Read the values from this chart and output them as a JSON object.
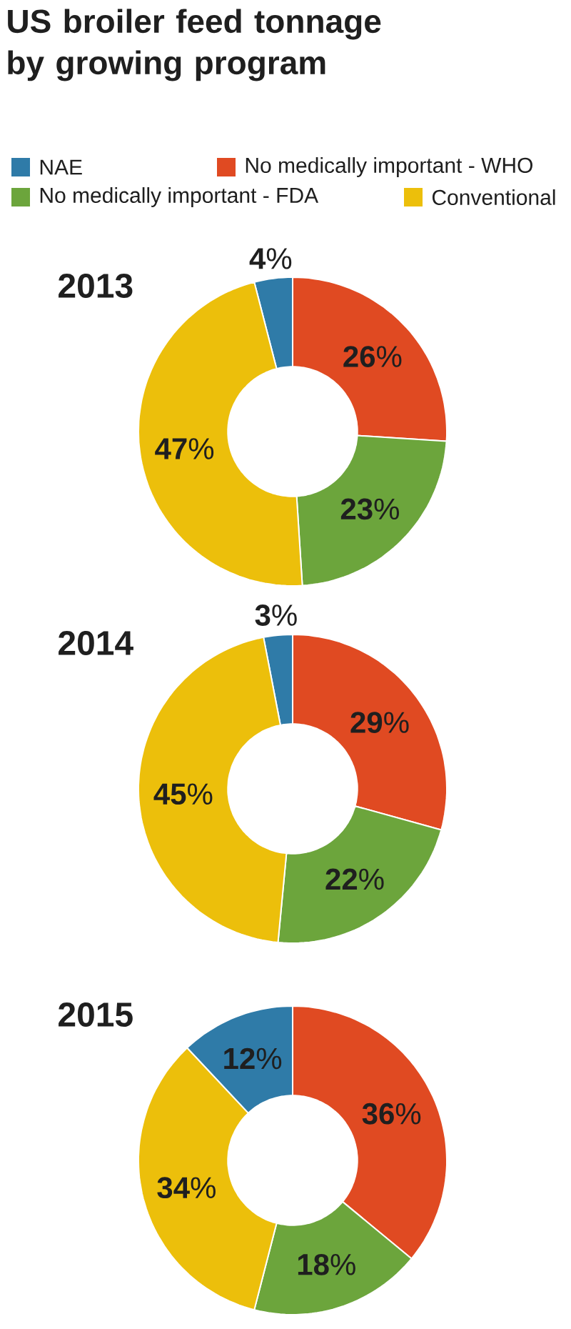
{
  "chart_data": [
    {
      "type": "other",
      "title": "US broiler feed tonnage by growing program"
    },
    {
      "type": "donut",
      "title": "2013",
      "categories": [
        "NAE",
        "No medically important - WHO",
        "No medically important - FDA",
        "Conventional"
      ],
      "values": [
        4,
        26,
        23,
        47
      ],
      "colors": [
        "#2f7ba8",
        "#e04a22",
        "#6ca53c",
        "#ecbf0b"
      ],
      "value_labels": [
        "**4**%",
        "**26**%",
        "**23**%",
        "**47**%"
      ],
      "legend": "top"
    },
    {
      "type": "donut",
      "title": "2014",
      "categories": [
        null,
        null,
        null,
        null
      ],
      "values": [
        3,
        29,
        22,
        45
      ],
      "colors": [
        "#2f7ba8",
        "#e04a22",
        "#6ca53c",
        "#ecbf0b"
      ],
      "value_labels": [
        "**3**%",
        "**29**%",
        "**22**%",
        "**45**%"
      ]
    },
    {
      "type": "donut",
      "title": "2015",
      "categories": [
        null,
        null,
        null,
        null
      ],
      "values": [
        12,
        36,
        18,
        34
      ],
      "colors": [
        "#2f7ba8",
        "#e04a22",
        "#6ca53c",
        "#ecbf0b"
      ],
      "value_labels": [
        "**12**%",
        "**36**%",
        "**18**%",
        "**34**%"
      ]
    }
  ]
}
